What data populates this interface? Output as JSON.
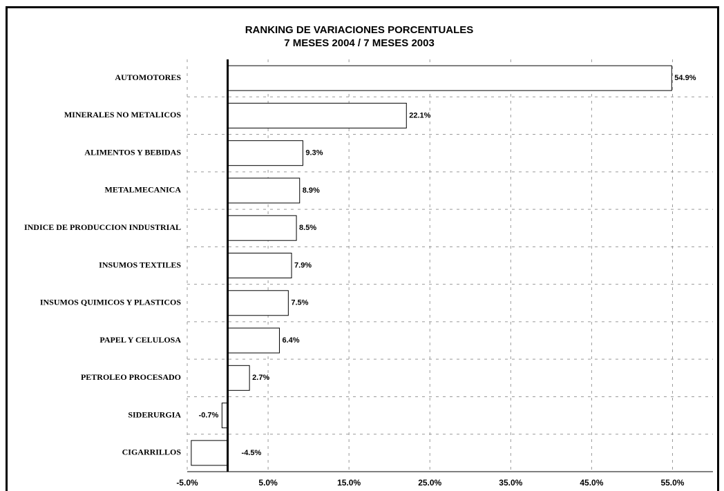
{
  "chart_data": {
    "type": "hbar",
    "title": "RANKING DE VARIACIONES PORCENTUALES",
    "subtitle": "7 MESES 2004 / 7 MESES 2003",
    "categories": [
      "AUTOMOTORES",
      "MINERALES NO METALICOS",
      "ALIMENTOS Y BEBIDAS",
      "METALMECANICA",
      "INDICE DE PRODUCCION INDUSTRIAL",
      "INSUMOS TEXTILES",
      "INSUMOS QUIMICOS Y PLASTICOS",
      "PAPEL Y CELULOSA",
      "PETROLEO PROCESADO",
      "SIDERURGIA",
      "CIGARRILLOS"
    ],
    "values": [
      54.9,
      22.1,
      9.3,
      8.9,
      8.5,
      7.9,
      7.5,
      6.4,
      2.7,
      -0.7,
      -4.5
    ],
    "value_labels": [
      "54.9%",
      "22.1%",
      "9.3%",
      "8.9%",
      "8.5%",
      "7.9%",
      "7.5%",
      "6.4%",
      "2.7%",
      "-0.7%",
      "-4.5%"
    ],
    "color": "#ffffff",
    "xlim": [
      -5,
      60
    ],
    "xticks": [
      {
        "value": -5,
        "label": "-5.0%"
      },
      {
        "value": 5,
        "label": "5.0%"
      },
      {
        "value": 15,
        "label": "15.0%"
      },
      {
        "value": 25,
        "label": "25.0%"
      },
      {
        "value": 35,
        "label": "35.0%"
      },
      {
        "value": 45,
        "label": "45.0%"
      },
      {
        "value": 55,
        "label": "55.0%"
      }
    ],
    "grid": true
  }
}
